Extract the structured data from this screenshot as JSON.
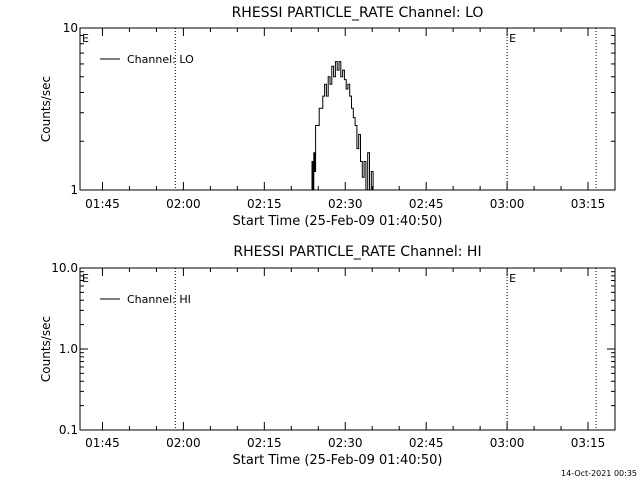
{
  "page": {
    "timestamp": "14-Oct-2021 00:35"
  },
  "chart_data": [
    {
      "type": "line",
      "title": "RHESSI PARTICLE_RATE Channel: LO",
      "xlabel": "Start Time (25-Feb-09 01:40:50)",
      "ylabel": "Counts/sec",
      "y_scale": "log",
      "ylim": [
        1,
        10
      ],
      "y_tick_labels": [
        "1",
        "10"
      ],
      "xlim": [
        "01:40:50",
        "03:20:00"
      ],
      "x_tick_labels": [
        "01:45",
        "02:00",
        "02:15",
        "02:30",
        "02:45",
        "03:00",
        "03:15"
      ],
      "legend": {
        "placement": "top-left",
        "entries": [
          "Channel: LO"
        ]
      },
      "markers": [
        {
          "label": "E",
          "time": "01:40:50"
        },
        {
          "label": "",
          "time": "01:58:30"
        },
        {
          "label": "E",
          "time": "03:00:00"
        },
        {
          "label": "",
          "time": "03:16:30"
        }
      ],
      "series": [
        {
          "name": "Channel: LO",
          "x": [
            "02:23:40",
            "02:23:50",
            "02:24:00",
            "02:24:10",
            "02:24:20",
            "02:24:30",
            "02:24:50",
            "02:25:10",
            "02:25:30",
            "02:25:50",
            "02:26:10",
            "02:26:30",
            "02:26:50",
            "02:27:10",
            "02:27:30",
            "02:27:50",
            "02:28:10",
            "02:28:30",
            "02:28:50",
            "02:29:10",
            "02:29:30",
            "02:29:50",
            "02:30:10",
            "02:30:30",
            "02:30:50",
            "02:31:10",
            "02:31:30",
            "02:31:50",
            "02:32:10",
            "02:32:30",
            "02:32:50",
            "02:33:10",
            "02:33:30",
            "02:33:50",
            "02:34:10",
            "02:34:30",
            "02:34:50",
            "02:35:10"
          ],
          "values": [
            1,
            1.5,
            1,
            1.7,
            1.3,
            2.5,
            2.5,
            3.2,
            3.2,
            3.8,
            4.5,
            3.8,
            5.0,
            4.5,
            5.8,
            5.0,
            6.2,
            5.5,
            6.2,
            5.0,
            5.5,
            4.8,
            4.2,
            4.5,
            3.8,
            3.2,
            2.8,
            2.5,
            1.8,
            2.2,
            1.5,
            1.2,
            1.5,
            1.0,
            1.7,
            1.0,
            1.3,
            1
          ]
        }
      ]
    },
    {
      "type": "line",
      "title": "RHESSI PARTICLE_RATE Channel: HI",
      "xlabel": "Start Time (25-Feb-09 01:40:50)",
      "ylabel": "Counts/sec",
      "y_scale": "log",
      "ylim": [
        0.1,
        10
      ],
      "y_tick_labels": [
        "0.1",
        "1.0",
        "10.0"
      ],
      "xlim": [
        "01:40:50",
        "03:20:00"
      ],
      "x_tick_labels": [
        "01:45",
        "02:00",
        "02:15",
        "02:30",
        "02:45",
        "03:00",
        "03:15"
      ],
      "legend": {
        "placement": "top-left",
        "entries": [
          "Channel: HI"
        ]
      },
      "markers": [
        {
          "label": "E",
          "time": "01:40:50"
        },
        {
          "label": "",
          "time": "01:58:30"
        },
        {
          "label": "E",
          "time": "03:00:00"
        },
        {
          "label": "",
          "time": "03:16:30"
        }
      ],
      "series": [
        {
          "name": "Channel: HI",
          "x": [],
          "values": []
        }
      ]
    }
  ]
}
